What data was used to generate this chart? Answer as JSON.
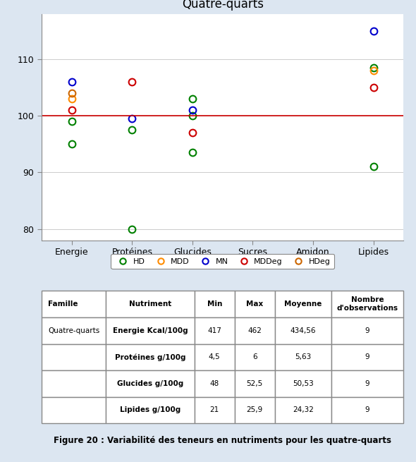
{
  "title": "Quatre-quarts",
  "categories": [
    "Energie",
    "Protéines",
    "Glucides",
    "Sucres",
    "Amidon",
    "Lipides"
  ],
  "ylim": [
    78,
    118
  ],
  "yticks": [
    80,
    90,
    100,
    110
  ],
  "hline_y": 100,
  "hline_color": "#cc0000",
  "bg_color": "#dce6f1",
  "plot_bg": "#ffffff",
  "series": {
    "HD": {
      "color": "#008000",
      "points": [
        [
          1,
          99.0
        ],
        [
          1,
          95.0
        ],
        [
          2,
          80.0
        ],
        [
          2,
          97.5
        ],
        [
          3,
          93.5
        ],
        [
          3,
          100.0
        ],
        [
          3,
          103.0
        ],
        [
          6,
          91.0
        ],
        [
          6,
          108.5
        ]
      ]
    },
    "MDD": {
      "color": "#ff8c00",
      "points": [
        [
          1,
          103.0
        ],
        [
          6,
          108.0
        ]
      ]
    },
    "MN": {
      "color": "#0000cc",
      "points": [
        [
          1,
          106.0
        ],
        [
          2,
          99.5
        ],
        [
          3,
          101.0
        ],
        [
          6,
          115.0
        ]
      ]
    },
    "MDDeg": {
      "color": "#cc0000",
      "points": [
        [
          1,
          101.0
        ],
        [
          2,
          106.0
        ],
        [
          3,
          97.0
        ],
        [
          6,
          105.0
        ]
      ]
    },
    "HDeg": {
      "color": "#cc6600",
      "points": [
        [
          1,
          104.0
        ]
      ]
    }
  },
  "legend_labels": [
    "HD",
    "MDD",
    "MN",
    "MDDeg",
    "HDeg"
  ],
  "legend_colors": [
    "#008000",
    "#ff8c00",
    "#0000cc",
    "#cc0000",
    "#cc6600"
  ],
  "table_col_headers": [
    "Famille",
    "Nutriment",
    "Min",
    "Max",
    "Moyenne",
    "Nombre\nd'observations"
  ],
  "table_rows": [
    [
      "Quatre-quarts",
      "Energie Kcal/100g",
      "417",
      "462",
      "434,56",
      "9"
    ],
    [
      "",
      "Protéines g/100g",
      "4,5",
      "6",
      "5,63",
      "9"
    ],
    [
      "",
      "Glucides g/100g",
      "48",
      "52,5",
      "50,53",
      "9"
    ],
    [
      "",
      "Lipides g/100g",
      "21",
      "25,9",
      "24,32",
      "9"
    ]
  ],
  "figure_caption": "Figure 20 : Variabilité des teneurs en nutriments pour les quatre-quarts"
}
